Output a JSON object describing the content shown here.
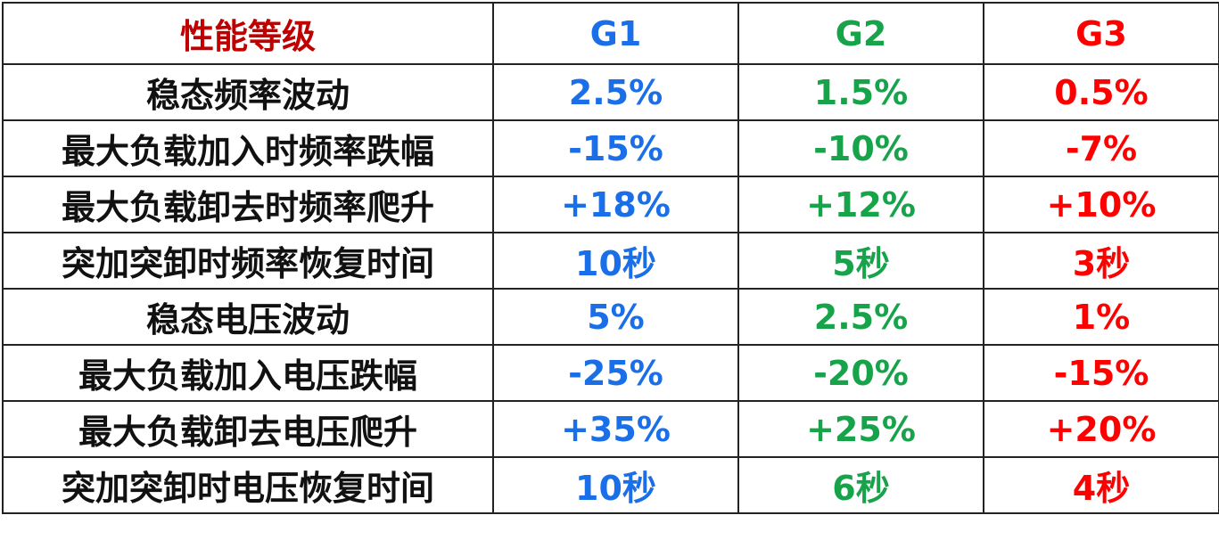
{
  "table": {
    "header": [
      "性能等级",
      "G1",
      "G2",
      "G3"
    ],
    "rows": [
      [
        "稳态频率波动",
        "2.5%",
        "1.5%",
        "0.5%"
      ],
      [
        "最大负载加入时频率跌幅",
        "-15%",
        "-10%",
        "-7%"
      ],
      [
        "最大负载卸去时频率爬升",
        "+18%",
        "+12%",
        "+10%"
      ],
      [
        "突加突卸时频率恢复时间",
        "10秒",
        "5秒",
        "3秒"
      ],
      [
        "稳态电压波动",
        "5%",
        "2.5%",
        "1%"
      ],
      [
        "最大负载加入电压跌幅",
        "-25%",
        "-20%",
        "-15%"
      ],
      [
        "最大负载卸去电压爬升",
        "+35%",
        "+25%",
        "+20%"
      ],
      [
        "突加突卸时电压恢复时间",
        "10秒",
        "6秒",
        "4秒"
      ]
    ]
  }
}
